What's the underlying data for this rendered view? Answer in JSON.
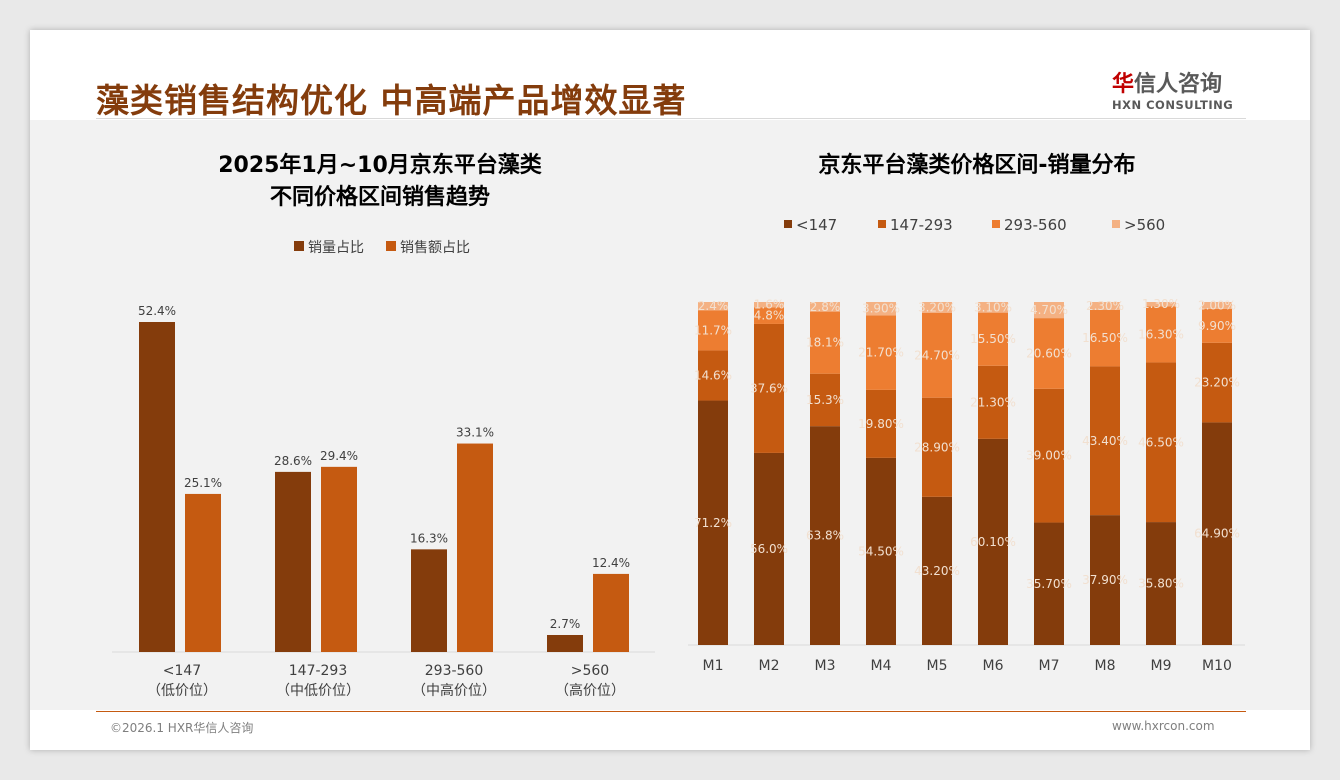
{
  "title": "藻类销售结构优化 中高端产品增效显著",
  "logo": {
    "cn_first": "华",
    "cn_rest": "信人咨询",
    "en": "HXN CONSULTING"
  },
  "footer": {
    "left": "©2026.1 HXR华信人咨询",
    "right": "www.hxrcon.com"
  },
  "colors": {
    "c1": "#843c0c",
    "c2": "#c55a11",
    "c3": "#ed7d31",
    "c4": "#f4b183"
  },
  "chart_data": [
    {
      "type": "bar",
      "title_lines": [
        "2025年1月~10月京东平台藻类",
        "不同价格区间销售趋势"
      ],
      "categories": [
        "<147",
        "147-293",
        "293-560",
        ">560"
      ],
      "category_sub": [
        "（低价位）",
        "（中低价位）",
        "（中高价位）",
        "（高价位）"
      ],
      "series": [
        {
          "name": "销量占比",
          "values": [
            52.4,
            28.6,
            16.3,
            2.7
          ]
        },
        {
          "name": "销售额占比",
          "values": [
            25.1,
            29.4,
            33.1,
            12.4
          ]
        }
      ],
      "legend": "top",
      "ylim": [
        0,
        60
      ]
    },
    {
      "type": "bar",
      "stacked": true,
      "title": "京东平台藻类价格区间-销量分布",
      "categories": [
        "M1",
        "M2",
        "M3",
        "M4",
        "M5",
        "M6",
        "M7",
        "M8",
        "M9",
        "M10"
      ],
      "series": [
        {
          "name": "<147",
          "values": [
            71.2,
            56.0,
            63.8,
            54.5,
            43.2,
            60.1,
            35.7,
            37.9,
            35.8,
            64.9
          ],
          "labels": [
            "71.2%",
            "56.0%",
            "63.8%",
            "54.50%",
            "43.20%",
            "60.10%",
            "35.70%",
            "37.90%",
            "35.80%",
            "64.90%"
          ]
        },
        {
          "name": "147-293",
          "values": [
            14.6,
            37.6,
            15.3,
            19.8,
            28.9,
            21.3,
            39.0,
            43.4,
            46.5,
            23.2
          ],
          "labels": [
            "14.6%",
            "37.6%",
            "15.3%",
            "19.80%",
            "28.90%",
            "21.30%",
            "39.00%",
            "43.40%",
            "46.50%",
            "23.20%"
          ]
        },
        {
          "name": "293-560",
          "values": [
            11.7,
            4.8,
            18.1,
            21.7,
            24.7,
            15.5,
            20.6,
            16.5,
            16.3,
            9.9
          ],
          "labels": [
            "11.7%",
            "4.8%",
            "18.1%",
            "21.70%",
            "24.70%",
            "15.50%",
            "20.60%",
            "16.50%",
            "16.30%",
            "9.90%"
          ]
        },
        {
          "name": ">560",
          "values": [
            2.4,
            1.6,
            2.8,
            3.9,
            3.2,
            3.1,
            4.7,
            2.3,
            1.3,
            2.0
          ],
          "labels": [
            "2.4%",
            "1.6%",
            "2.8%",
            "3.90%",
            "3.20%",
            "3.10%",
            "4.70%",
            "2.30%",
            "1.30%",
            "2.00%"
          ]
        }
      ],
      "legend": "top",
      "ylim": [
        0,
        100
      ]
    }
  ]
}
